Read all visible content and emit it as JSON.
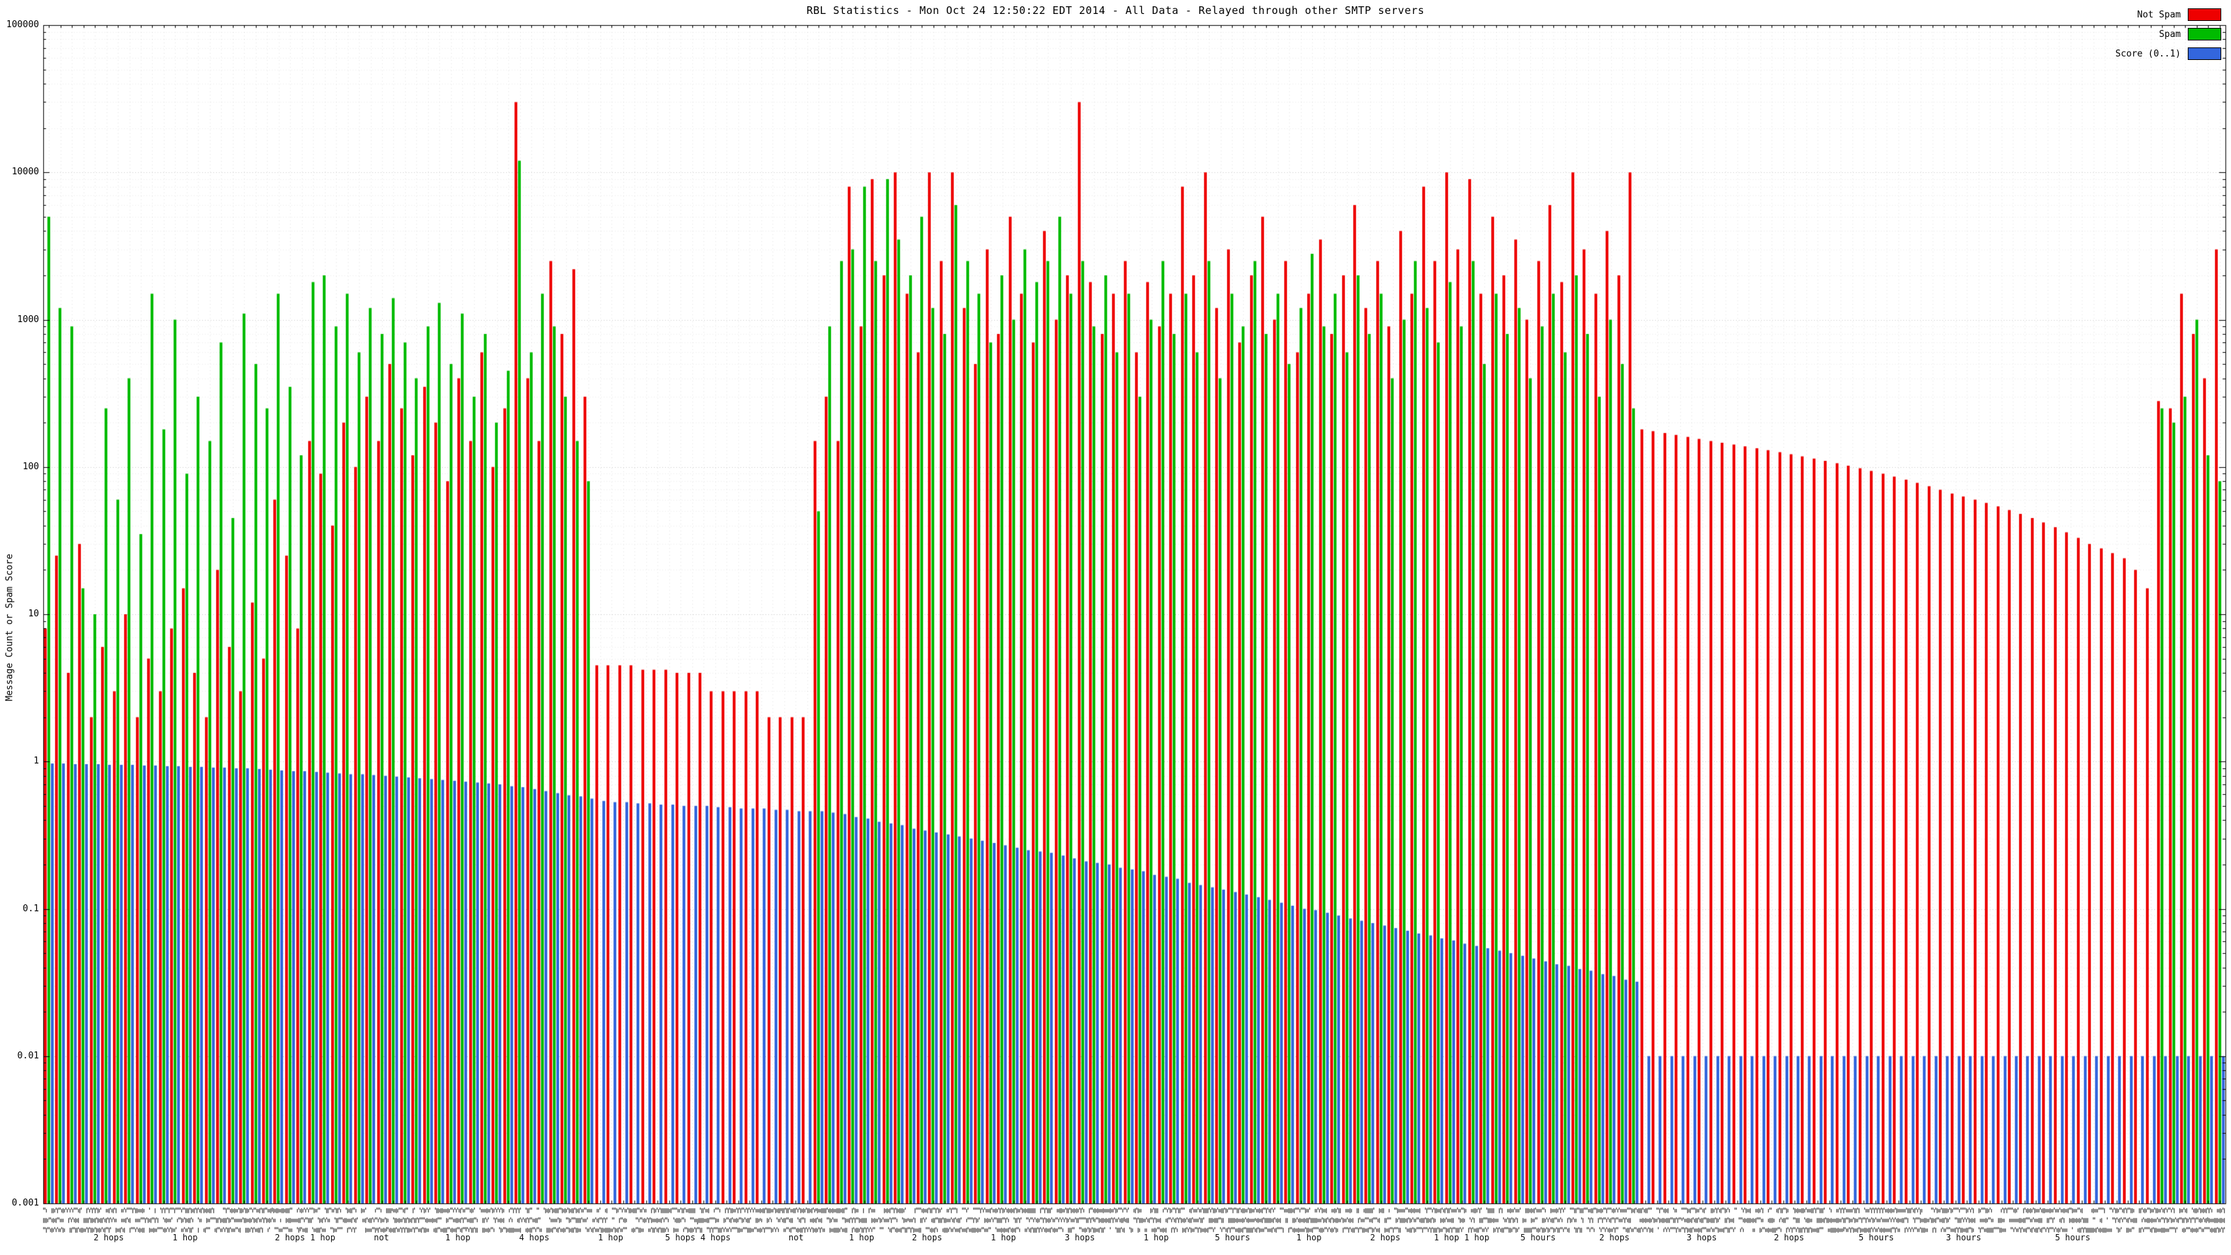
{
  "title": "RBL Statistics - Mon Oct 24 12:50:22 EDT 2014 - All Data - Relayed through other SMTP servers",
  "ylabel": "Message Count or Spam Score",
  "colors": {
    "not_spam": "#ee0000",
    "spam": "#00bb00",
    "score": "#3366dd",
    "grid_major": "#c8c8c8",
    "grid_minor": "#ececec",
    "axis": "#000000",
    "background": "#ffffff"
  },
  "legend": [
    {
      "label": "Not Spam",
      "color": "#ee0000"
    },
    {
      "label": "Spam",
      "color": "#00bb00"
    },
    {
      "label": "Score (0..1)",
      "color": "#3366dd"
    }
  ],
  "chart_data": {
    "type": "bar",
    "scale": "log",
    "title": "RBL Statistics - Mon Oct 24 12:50:22 EDT 2014 - All Data - Relayed through other SMTP servers",
    "xlabel": "",
    "ylabel": "Message Count or Spam Score",
    "ylim": [
      0.001,
      100000
    ],
    "grid": true,
    "legend_position": "top-right",
    "y_ticks": [
      "100000",
      "10000",
      "1000",
      "100",
      "10",
      "1",
      "0.1",
      "0.01",
      "0.001"
    ],
    "series_names": [
      "Not Spam",
      "Spam",
      "Score (0..1)"
    ],
    "x_axis_note": "dense per-bar RBL host labels, illegible at this resolution",
    "x_sublabels": [
      {
        "pos": 0.03,
        "text": "2 hops"
      },
      {
        "pos": 0.065,
        "text": "1 hop"
      },
      {
        "pos": 0.12,
        "text": "2 hops 1 hop"
      },
      {
        "pos": 0.155,
        "text": "not"
      },
      {
        "pos": 0.19,
        "text": "1 hop"
      },
      {
        "pos": 0.225,
        "text": "4 hops"
      },
      {
        "pos": 0.26,
        "text": "1 hop"
      },
      {
        "pos": 0.3,
        "text": "5 hops 4 hops"
      },
      {
        "pos": 0.345,
        "text": "not"
      },
      {
        "pos": 0.375,
        "text": "1 hop"
      },
      {
        "pos": 0.405,
        "text": "2 hops"
      },
      {
        "pos": 0.44,
        "text": "1 hop"
      },
      {
        "pos": 0.475,
        "text": "3 hops"
      },
      {
        "pos": 0.51,
        "text": "1 hop"
      },
      {
        "pos": 0.545,
        "text": "5 hours"
      },
      {
        "pos": 0.58,
        "text": "1 hop"
      },
      {
        "pos": 0.615,
        "text": "2 hops"
      },
      {
        "pos": 0.65,
        "text": "1 hop 1 hop"
      },
      {
        "pos": 0.685,
        "text": "5 hours"
      },
      {
        "pos": 0.72,
        "text": "2 hops"
      },
      {
        "pos": 0.76,
        "text": "3 hops"
      },
      {
        "pos": 0.8,
        "text": "2 hops"
      },
      {
        "pos": 0.84,
        "text": "5 hours"
      },
      {
        "pos": 0.88,
        "text": "3 hours"
      },
      {
        "pos": 0.93,
        "text": "5 hours"
      }
    ],
    "groups_format": [
      "not_spam_count",
      "spam_count",
      "score"
    ],
    "groups": [
      [
        8,
        5000,
        0.97
      ],
      [
        25,
        1200,
        0.97
      ],
      [
        4,
        900,
        0.96
      ],
      [
        30,
        15,
        0.96
      ],
      [
        2,
        10,
        0.96
      ],
      [
        6,
        250,
        0.95
      ],
      [
        3,
        60,
        0.95
      ],
      [
        10,
        400,
        0.95
      ],
      [
        2,
        35,
        0.94
      ],
      [
        5,
        1500,
        0.94
      ],
      [
        3,
        180,
        0.93
      ],
      [
        8,
        1000,
        0.93
      ],
      [
        15,
        90,
        0.92
      ],
      [
        4,
        300,
        0.92
      ],
      [
        2,
        150,
        0.91
      ],
      [
        20,
        700,
        0.91
      ],
      [
        6,
        45,
        0.9
      ],
      [
        3,
        1100,
        0.9
      ],
      [
        12,
        500,
        0.89
      ],
      [
        5,
        250,
        0.88
      ],
      [
        60,
        1500,
        0.87
      ],
      [
        25,
        350,
        0.86
      ],
      [
        8,
        120,
        0.86
      ],
      [
        150,
        1800,
        0.85
      ],
      [
        90,
        2000,
        0.84
      ],
      [
        40,
        900,
        0.83
      ],
      [
        200,
        1500,
        0.82
      ],
      [
        100,
        600,
        0.82
      ],
      [
        300,
        1200,
        0.81
      ],
      [
        150,
        800,
        0.8
      ],
      [
        500,
        1400,
        0.79
      ],
      [
        250,
        700,
        0.78
      ],
      [
        120,
        400,
        0.77
      ],
      [
        350,
        900,
        0.76
      ],
      [
        200,
        1300,
        0.75
      ],
      [
        80,
        500,
        0.74
      ],
      [
        400,
        1100,
        0.73
      ],
      [
        150,
        300,
        0.72
      ],
      [
        600,
        800,
        0.71
      ],
      [
        100,
        200,
        0.7
      ],
      [
        250,
        450,
        0.68
      ],
      [
        30000,
        12000,
        0.67
      ],
      [
        400,
        600,
        0.65
      ],
      [
        150,
        1500,
        0.63
      ],
      [
        2500,
        900,
        0.61
      ],
      [
        800,
        300,
        0.59
      ],
      [
        2200,
        150,
        0.58
      ],
      [
        300,
        80,
        0.56
      ],
      [
        4.5,
        0,
        0.54
      ],
      [
        4.5,
        0,
        0.53
      ],
      [
        4.5,
        0,
        0.53
      ],
      [
        4.5,
        0,
        0.52
      ],
      [
        4.2,
        0,
        0.52
      ],
      [
        4.2,
        0,
        0.51
      ],
      [
        4.2,
        0,
        0.51
      ],
      [
        4,
        0,
        0.5
      ],
      [
        4,
        0,
        0.5
      ],
      [
        4,
        0,
        0.5
      ],
      [
        3,
        0,
        0.49
      ],
      [
        3,
        0,
        0.49
      ],
      [
        3,
        0,
        0.48
      ],
      [
        3,
        0,
        0.48
      ],
      [
        3,
        0,
        0.48
      ],
      [
        2,
        0,
        0.47
      ],
      [
        2,
        0,
        0.47
      ],
      [
        2,
        0,
        0.46
      ],
      [
        2,
        0,
        0.46
      ],
      [
        150,
        50,
        0.46
      ],
      [
        300,
        900,
        0.45
      ],
      [
        150,
        2500,
        0.44
      ],
      [
        8000,
        3000,
        0.42
      ],
      [
        900,
        8000,
        0.41
      ],
      [
        9000,
        2500,
        0.39
      ],
      [
        2000,
        9000,
        0.38
      ],
      [
        10000,
        3500,
        0.37
      ],
      [
        1500,
        2000,
        0.35
      ],
      [
        600,
        5000,
        0.34
      ],
      [
        10000,
        1200,
        0.33
      ],
      [
        2500,
        800,
        0.32
      ],
      [
        10000,
        6000,
        0.31
      ],
      [
        1200,
        2500,
        0.3
      ],
      [
        500,
        1500,
        0.29
      ],
      [
        3000,
        700,
        0.28
      ],
      [
        800,
        2000,
        0.27
      ],
      [
        5000,
        1000,
        0.26
      ],
      [
        1500,
        3000,
        0.25
      ],
      [
        700,
        1800,
        0.245
      ],
      [
        4000,
        2500,
        0.24
      ],
      [
        1000,
        5000,
        0.23
      ],
      [
        2000,
        1500,
        0.22
      ],
      [
        30000,
        2500,
        0.21
      ],
      [
        1800,
        900,
        0.205
      ],
      [
        800,
        2000,
        0.2
      ],
      [
        1500,
        600,
        0.19
      ],
      [
        2500,
        1500,
        0.185
      ],
      [
        600,
        300,
        0.18
      ],
      [
        1800,
        1000,
        0.17
      ],
      [
        900,
        2500,
        0.165
      ],
      [
        1500,
        800,
        0.16
      ],
      [
        8000,
        1500,
        0.15
      ],
      [
        2000,
        600,
        0.145
      ],
      [
        10000,
        2500,
        0.14
      ],
      [
        1200,
        400,
        0.135
      ],
      [
        3000,
        1500,
        0.13
      ],
      [
        700,
        900,
        0.125
      ],
      [
        2000,
        2500,
        0.12
      ],
      [
        5000,
        800,
        0.115
      ],
      [
        1000,
        1500,
        0.11
      ],
      [
        2500,
        500,
        0.105
      ],
      [
        600,
        1200,
        0.1
      ],
      [
        1500,
        2800,
        0.098
      ],
      [
        3500,
        900,
        0.094
      ],
      [
        800,
        1500,
        0.09
      ],
      [
        2000,
        600,
        0.086
      ],
      [
        6000,
        2000,
        0.083
      ],
      [
        1200,
        800,
        0.08
      ],
      [
        2500,
        1500,
        0.077
      ],
      [
        900,
        400,
        0.074
      ],
      [
        4000,
        1000,
        0.071
      ],
      [
        1500,
        2500,
        0.068
      ],
      [
        8000,
        1200,
        0.066
      ],
      [
        2500,
        700,
        0.063
      ],
      [
        10000,
        1800,
        0.061
      ],
      [
        3000,
        900,
        0.058
      ],
      [
        9000,
        2500,
        0.056
      ],
      [
        1500,
        500,
        0.054
      ],
      [
        5000,
        1500,
        0.052
      ],
      [
        2000,
        800,
        0.05
      ],
      [
        3500,
        1200,
        0.048
      ],
      [
        1000,
        400,
        0.046
      ],
      [
        2500,
        900,
        0.044
      ],
      [
        6000,
        1500,
        0.042
      ],
      [
        1800,
        600,
        0.041
      ],
      [
        10000,
        2000,
        0.039
      ],
      [
        3000,
        800,
        0.038
      ],
      [
        1500,
        300,
        0.036
      ],
      [
        4000,
        1000,
        0.035
      ],
      [
        2000,
        500,
        0.033
      ],
      [
        10000,
        250,
        0.032
      ],
      [
        180,
        0,
        0.01
      ],
      [
        175,
        0,
        0.01
      ],
      [
        170,
        0,
        0.01
      ],
      [
        165,
        0,
        0.01
      ],
      [
        160,
        0,
        0.01
      ],
      [
        155,
        0,
        0.01
      ],
      [
        150,
        0,
        0.01
      ],
      [
        146,
        0,
        0.01
      ],
      [
        142,
        0,
        0.01
      ],
      [
        138,
        0,
        0.01
      ],
      [
        134,
        0,
        0.01
      ],
      [
        130,
        0,
        0.01
      ],
      [
        126,
        0,
        0.01
      ],
      [
        122,
        0,
        0.01
      ],
      [
        118,
        0,
        0.01
      ],
      [
        114,
        0,
        0.01
      ],
      [
        110,
        0,
        0.01
      ],
      [
        106,
        0,
        0.01
      ],
      [
        102,
        0,
        0.01
      ],
      [
        98,
        0,
        0.01
      ],
      [
        94,
        0,
        0.01
      ],
      [
        90,
        0,
        0.01
      ],
      [
        86,
        0,
        0.01
      ],
      [
        82,
        0,
        0.01
      ],
      [
        78,
        0,
        0.01
      ],
      [
        74,
        0,
        0.01
      ],
      [
        70,
        0,
        0.01
      ],
      [
        66,
        0,
        0.01
      ],
      [
        63,
        0,
        0.01
      ],
      [
        60,
        0,
        0.01
      ],
      [
        57,
        0,
        0.01
      ],
      [
        54,
        0,
        0.01
      ],
      [
        51,
        0,
        0.01
      ],
      [
        48,
        0,
        0.01
      ],
      [
        45,
        0,
        0.01
      ],
      [
        42,
        0,
        0.01
      ],
      [
        39,
        0,
        0.01
      ],
      [
        36,
        0,
        0.01
      ],
      [
        33,
        0,
        0.01
      ],
      [
        30,
        0,
        0.01
      ],
      [
        28,
        0,
        0.01
      ],
      [
        26,
        0,
        0.01
      ],
      [
        24,
        0,
        0.01
      ],
      [
        20,
        0,
        0.01
      ],
      [
        15,
        0,
        0.01
      ],
      [
        280,
        250,
        0.01
      ],
      [
        250,
        200,
        0.01
      ],
      [
        1500,
        300,
        0.01
      ],
      [
        800,
        1000,
        0.01
      ],
      [
        400,
        120,
        0.01
      ],
      [
        3000,
        80,
        0.01
      ]
    ]
  }
}
